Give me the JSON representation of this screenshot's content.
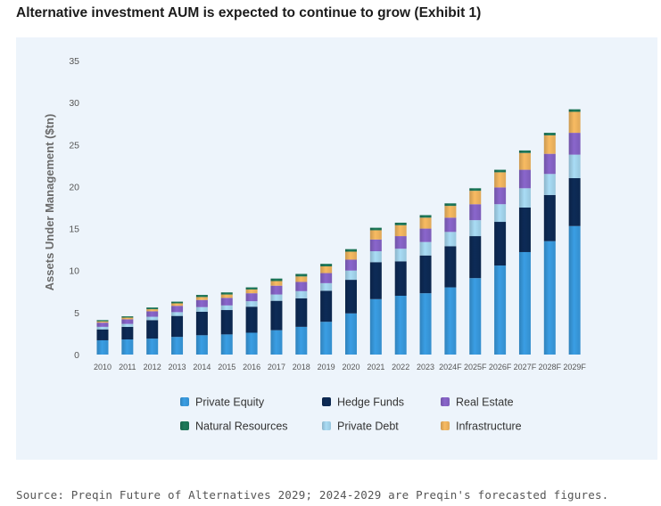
{
  "title": "Alternative investment AUM is expected to continue to grow (Exhibit 1)",
  "source": "Source: Preqin Future of Alternatives 2029; 2024-2029 are Preqin's forecasted figures.",
  "chart_data": {
    "type": "bar",
    "stacked": true,
    "title": "",
    "xlabel": "",
    "ylabel": "Assets Under Management ($tn)",
    "ylim": [
      0,
      35
    ],
    "yticks": [
      0,
      5,
      10,
      15,
      20,
      25,
      30,
      35
    ],
    "categories": [
      "2010",
      "2011",
      "2012",
      "2013",
      "2014",
      "2015",
      "2016",
      "2017",
      "2018",
      "2019",
      "2020",
      "2021",
      "2022",
      "2023",
      "2024F",
      "2025F",
      "2026F",
      "2027F",
      "2028F",
      "2029F"
    ],
    "series": [
      {
        "name": "Private Equity",
        "color": "#3a9ee4",
        "values": [
          1.7,
          1.8,
          1.9,
          2.1,
          2.3,
          2.4,
          2.6,
          2.9,
          3.3,
          3.9,
          4.9,
          6.6,
          7.0,
          7.3,
          8.0,
          9.1,
          10.6,
          12.2,
          13.5,
          15.3
        ]
      },
      {
        "name": "Hedge Funds",
        "color": "#0d2b57",
        "values": [
          1.3,
          1.5,
          2.2,
          2.5,
          2.8,
          2.9,
          3.1,
          3.5,
          3.4,
          3.7,
          4.0,
          4.4,
          4.1,
          4.5,
          4.9,
          5.0,
          5.2,
          5.3,
          5.5,
          5.7
        ]
      },
      {
        "name": "Private Debt",
        "color": "#a9dcf5",
        "values": [
          0.3,
          0.35,
          0.4,
          0.45,
          0.55,
          0.55,
          0.65,
          0.75,
          0.85,
          0.9,
          1.1,
          1.3,
          1.5,
          1.6,
          1.7,
          1.9,
          2.1,
          2.3,
          2.5,
          2.8
        ]
      },
      {
        "name": "Real Estate",
        "color": "#8a66cc",
        "values": [
          0.5,
          0.55,
          0.65,
          0.75,
          0.85,
          0.9,
          0.95,
          1.05,
          1.1,
          1.2,
          1.3,
          1.4,
          1.5,
          1.6,
          1.7,
          1.9,
          2.0,
          2.2,
          2.4,
          2.6
        ]
      },
      {
        "name": "Infrastructure",
        "color": "#f8bb62",
        "values": [
          0.15,
          0.2,
          0.25,
          0.3,
          0.35,
          0.4,
          0.45,
          0.55,
          0.65,
          0.8,
          0.95,
          1.1,
          1.3,
          1.3,
          1.4,
          1.6,
          1.8,
          2.0,
          2.2,
          2.5
        ]
      },
      {
        "name": "Natural Resources",
        "color": "#1e7a5a",
        "values": [
          0.15,
          0.15,
          0.2,
          0.2,
          0.25,
          0.25,
          0.25,
          0.3,
          0.3,
          0.3,
          0.3,
          0.3,
          0.3,
          0.3,
          0.3,
          0.3,
          0.3,
          0.3,
          0.3,
          0.3
        ]
      }
    ],
    "legend": {
      "placement": "bottom",
      "rows": [
        [
          "Private Equity",
          "Hedge Funds",
          "Real Estate"
        ],
        [
          "Natural Resources",
          "Private Debt",
          "Infrastructure"
        ]
      ]
    }
  }
}
